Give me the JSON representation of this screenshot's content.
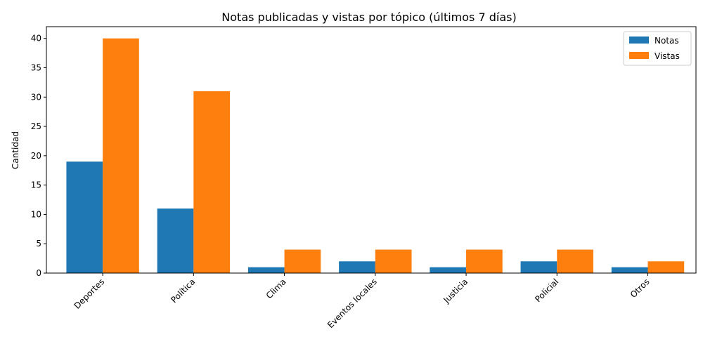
{
  "chart_data": {
    "type": "bar",
    "title": "Notas publicadas y vistas por tópico (últimos 7 días)",
    "xlabel": "",
    "ylabel": "Cantidad",
    "categories": [
      "Deportes",
      "Política",
      "Clima",
      "Eventos locales",
      "Justicia",
      "Policial",
      "Otros"
    ],
    "series": [
      {
        "name": "Notas",
        "color": "#1f77b4",
        "values": [
          19,
          11,
          1,
          2,
          1,
          2,
          1
        ]
      },
      {
        "name": "Vistas",
        "color": "#ff7f0e",
        "values": [
          40,
          31,
          4,
          4,
          4,
          4,
          2
        ]
      }
    ],
    "ylim": [
      0,
      42
    ],
    "yticks": [
      0,
      5,
      10,
      15,
      20,
      25,
      30,
      35,
      40
    ],
    "legend_position": "top-right",
    "grid": false
  }
}
